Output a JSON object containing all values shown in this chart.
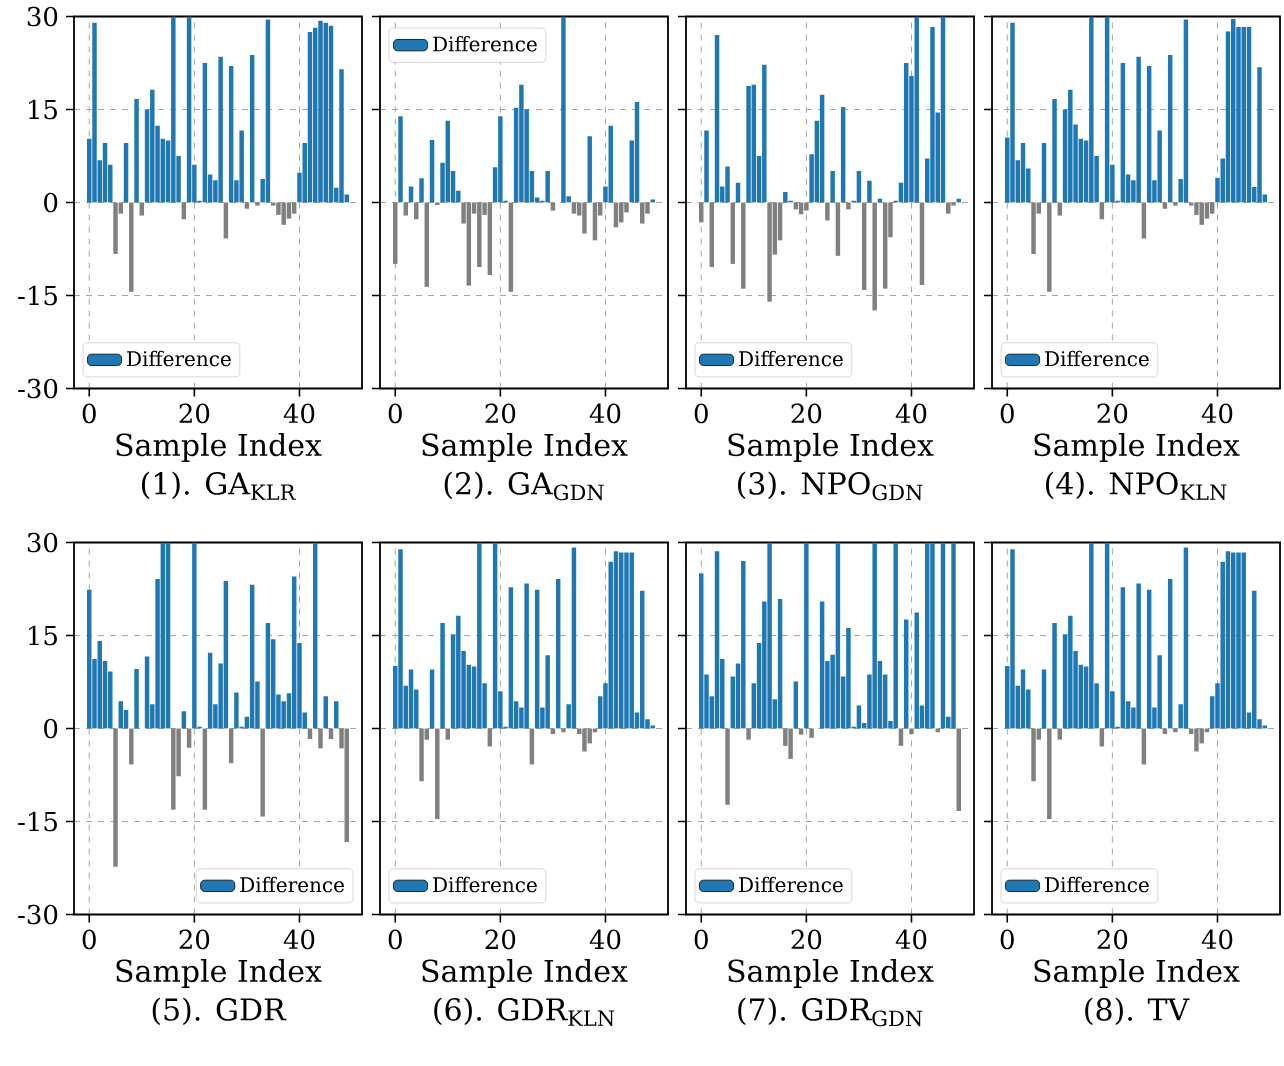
{
  "chart_data": [
    {
      "type": "bar",
      "title": "(1). GA$_{KLR}$",
      "xlabel": "Sample Index",
      "legend": "bottom left",
      "grid": true,
      "xlim": [
        -2.9,
        51.9
      ],
      "ylim": [
        -30,
        30
      ],
      "xticks": [
        0,
        20,
        40
      ],
      "yticks": [
        -30,
        -15,
        0,
        15,
        30
      ],
      "x": [
        0,
        1,
        2,
        3,
        4,
        5,
        6,
        7,
        8,
        9,
        10,
        11,
        12,
        13,
        14,
        15,
        16,
        17,
        18,
        19,
        20,
        21,
        22,
        23,
        24,
        25,
        26,
        27,
        28,
        29,
        30,
        31,
        32,
        33,
        34,
        35,
        36,
        37,
        38,
        39,
        40,
        41,
        42,
        43,
        44,
        45,
        46,
        47,
        48,
        49
      ],
      "series": [
        {
          "name": "Difference",
          "color": "#1f77b4",
          "values": [
            10.3,
            29,
            6.8,
            9.6,
            6.1,
            null,
            null,
            9.6,
            null,
            16.7,
            null,
            15,
            18.2,
            12.4,
            10.3,
            10,
            30,
            7.5,
            null,
            30,
            6.1,
            0.3,
            22.5,
            4.5,
            3.6,
            23.5,
            null,
            22,
            3.6,
            11.6,
            null,
            23.8,
            null,
            3.8,
            29.5,
            null,
            null,
            null,
            null,
            null,
            4.8,
            9.6,
            27.5,
            28.2,
            29.3,
            29,
            28.5,
            2.4,
            21.5,
            1.3
          ]
        },
        {
          "color": "#808080",
          "values": [
            null,
            null,
            null,
            null,
            null,
            -8.3,
            -1.8,
            null,
            -14.4,
            null,
            -2.1,
            null,
            null,
            null,
            null,
            null,
            null,
            null,
            -2.7,
            null,
            null,
            null,
            null,
            null,
            null,
            null,
            -5.8,
            null,
            null,
            null,
            -1,
            null,
            -0.5,
            null,
            null,
            -0.5,
            -2,
            -3.6,
            -2.6,
            -1.8,
            null,
            null,
            null,
            null,
            null,
            null,
            null,
            null,
            null,
            null
          ]
        }
      ]
    },
    {
      "type": "bar",
      "title": "(2). GA$_{GDN}$",
      "xlabel": "Sample Index",
      "legend": "top left",
      "grid": true,
      "tick_labels": "x",
      "xlim": [
        -2.9,
        51.9
      ],
      "ylim": [
        -30,
        30
      ],
      "xticks": [
        0,
        20,
        40
      ],
      "yticks": [
        -30,
        -15,
        0,
        15,
        30
      ],
      "x": [
        0,
        1,
        2,
        3,
        4,
        5,
        6,
        7,
        8,
        9,
        10,
        11,
        12,
        13,
        14,
        15,
        16,
        17,
        18,
        19,
        20,
        21,
        22,
        23,
        24,
        25,
        26,
        27,
        28,
        29,
        30,
        31,
        32,
        33,
        34,
        35,
        36,
        37,
        38,
        39,
        40,
        41,
        42,
        43,
        44,
        45,
        46,
        47,
        48,
        49
      ],
      "series": [
        {
          "name": "Difference",
          "color": "#1f77b4",
          "values": [
            null,
            13.9,
            null,
            2.6,
            null,
            3.9,
            null,
            10.1,
            null,
            6.4,
            13.2,
            5.1,
            1.9,
            null,
            null,
            null,
            null,
            null,
            null,
            5.7,
            13.9,
            0.3,
            null,
            15.3,
            19,
            15,
            5.1,
            0.8,
            0.3,
            5.1,
            null,
            null,
            30,
            1,
            null,
            null,
            null,
            10.7,
            null,
            null,
            2.6,
            12.4,
            null,
            null,
            null,
            10,
            16.2,
            null,
            null,
            0.5
          ]
        },
        {
          "color": "#808080",
          "values": [
            -9.9,
            null,
            -2.1,
            null,
            -2.7,
            null,
            -13.6,
            null,
            -0.4,
            null,
            null,
            null,
            null,
            -3.4,
            -13.4,
            -1.8,
            -10.4,
            -2,
            -11.7,
            null,
            null,
            null,
            -14.4,
            null,
            null,
            null,
            null,
            null,
            null,
            null,
            -1.3,
            null,
            null,
            null,
            -1.8,
            -2.1,
            -5,
            null,
            -6.1,
            -2.1,
            null,
            null,
            -4,
            -3.2,
            -1.6,
            null,
            null,
            -3.4,
            -1.8,
            null
          ]
        }
      ]
    },
    {
      "type": "bar",
      "title": "(3). NPO$_{GDN}$",
      "xlabel": "Sample Index",
      "legend": "bottom left",
      "grid": true,
      "tick_labels": "x",
      "xlim": [
        -2.9,
        51.9
      ],
      "ylim": [
        -30,
        30
      ],
      "xticks": [
        0,
        20,
        40
      ],
      "yticks": [
        -30,
        -15,
        0,
        15,
        30
      ],
      "x": [
        0,
        1,
        2,
        3,
        4,
        5,
        6,
        7,
        8,
        9,
        10,
        11,
        12,
        13,
        14,
        15,
        16,
        17,
        18,
        19,
        20,
        21,
        22,
        23,
        24,
        25,
        26,
        27,
        28,
        29,
        30,
        31,
        32,
        33,
        34,
        35,
        36,
        37,
        38,
        39,
        40,
        41,
        42,
        43,
        44,
        45,
        46,
        47,
        48,
        49
      ],
      "series": [
        {
          "name": "Difference",
          "color": "#1f77b4",
          "values": [
            null,
            11.6,
            null,
            27,
            2.6,
            5.8,
            null,
            3.2,
            null,
            18.8,
            19,
            7.5,
            22.2,
            null,
            null,
            null,
            1.7,
            0.3,
            null,
            null,
            null,
            7.8,
            13.2,
            17.4,
            null,
            5.1,
            null,
            15.4,
            null,
            0.3,
            5.1,
            null,
            3.5,
            null,
            0.6,
            null,
            null,
            0.3,
            3.2,
            22.5,
            20.4,
            30,
            null,
            7.1,
            28.3,
            14.5,
            30,
            null,
            null,
            0.6
          ]
        },
        {
          "color": "#808080",
          "values": [
            -3.2,
            null,
            -10.4,
            null,
            null,
            null,
            -9.9,
            null,
            -13.9,
            null,
            null,
            null,
            null,
            -16,
            -8.4,
            -6.1,
            null,
            null,
            -1.1,
            -1.9,
            -1.3,
            null,
            null,
            null,
            -2.9,
            null,
            -8.6,
            null,
            -1.1,
            null,
            null,
            -14.1,
            null,
            -17.4,
            null,
            -13.9,
            -5.6,
            null,
            null,
            null,
            null,
            null,
            -13.3,
            null,
            null,
            null,
            null,
            -1.8,
            -0.5,
            null
          ]
        }
      ]
    },
    {
      "type": "bar",
      "title": "(4). NPO$_{KLN}$",
      "xlabel": "Sample Index",
      "legend": "bottom left",
      "grid": true,
      "tick_labels": "x",
      "xlim": [
        -2.9,
        51.9
      ],
      "ylim": [
        -30,
        30
      ],
      "xticks": [
        0,
        20,
        40
      ],
      "yticks": [
        -30,
        -15,
        0,
        15,
        30
      ],
      "x": [
        0,
        1,
        2,
        3,
        4,
        5,
        6,
        7,
        8,
        9,
        10,
        11,
        12,
        13,
        14,
        15,
        16,
        17,
        18,
        19,
        20,
        21,
        22,
        23,
        24,
        25,
        26,
        27,
        28,
        29,
        30,
        31,
        32,
        33,
        34,
        35,
        36,
        37,
        38,
        39,
        40,
        41,
        42,
        43,
        44,
        45,
        46,
        47,
        48,
        49
      ],
      "series": [
        {
          "name": "Difference",
          "color": "#1f77b4",
          "values": [
            10.5,
            29,
            6.8,
            9.6,
            5.5,
            null,
            null,
            9.6,
            null,
            16.7,
            null,
            15,
            18.2,
            12.6,
            10.3,
            10,
            30,
            7.5,
            null,
            30,
            6.1,
            0.3,
            22.5,
            4.5,
            3.6,
            23.5,
            null,
            22,
            3.6,
            11.6,
            null,
            23.8,
            null,
            3.8,
            29.5,
            null,
            null,
            null,
            null,
            null,
            4,
            7.1,
            27.6,
            29.6,
            28.3,
            28.3,
            28.3,
            2.5,
            21.8,
            1.3
          ]
        },
        {
          "color": "#808080",
          "values": [
            null,
            null,
            null,
            null,
            null,
            -8.3,
            -1.8,
            null,
            -14.4,
            null,
            -2.1,
            null,
            null,
            null,
            null,
            null,
            null,
            null,
            -2.7,
            null,
            null,
            null,
            null,
            null,
            null,
            null,
            -5.8,
            null,
            null,
            null,
            -1,
            null,
            -0.5,
            null,
            null,
            -0.5,
            -2,
            -3.6,
            -2.6,
            -1.8,
            null,
            null,
            null,
            null,
            null,
            null,
            null,
            null,
            null,
            null
          ]
        }
      ]
    },
    {
      "type": "bar",
      "title": "(5). GDR",
      "xlabel": "Sample Index",
      "legend": "bottom right",
      "grid": true,
      "xlim": [
        -2.9,
        51.9
      ],
      "ylim": [
        -30,
        30
      ],
      "xticks": [
        0,
        20,
        40
      ],
      "yticks": [
        -30,
        -15,
        0,
        15,
        30
      ],
      "x": [
        0,
        1,
        2,
        3,
        4,
        5,
        6,
        7,
        8,
        9,
        10,
        11,
        12,
        13,
        14,
        15,
        16,
        17,
        18,
        19,
        20,
        21,
        22,
        23,
        24,
        25,
        26,
        27,
        28,
        29,
        30,
        31,
        32,
        33,
        34,
        35,
        36,
        37,
        38,
        39,
        40,
        41,
        42,
        43,
        44,
        45,
        46,
        47,
        48,
        49
      ],
      "series": [
        {
          "name": "Difference",
          "color": "#1f77b4",
          "values": [
            22.4,
            11.2,
            14.1,
            10.9,
            9.2,
            null,
            4.4,
            3,
            null,
            9.6,
            null,
            11.6,
            3.9,
            24.1,
            30,
            30,
            null,
            null,
            2.8,
            null,
            30,
            0.3,
            null,
            12.2,
            3.9,
            10.5,
            23.8,
            null,
            5.8,
            0.3,
            1.9,
            23.2,
            7.6,
            null,
            17,
            14.4,
            5.5,
            4.4,
            5.7,
            24.5,
            13.8,
            2.6,
            null,
            30,
            null,
            5.2,
            null,
            4.4,
            null,
            null
          ]
        },
        {
          "color": "#808080",
          "values": [
            null,
            null,
            null,
            null,
            null,
            -22.3,
            null,
            null,
            -5.8,
            null,
            null,
            null,
            null,
            null,
            null,
            null,
            -13.1,
            -7.7,
            null,
            -3.1,
            null,
            null,
            -13.1,
            null,
            null,
            null,
            null,
            -5.6,
            null,
            null,
            null,
            null,
            null,
            -14.2,
            null,
            null,
            null,
            null,
            null,
            null,
            null,
            null,
            -1.7,
            null,
            -3.2,
            null,
            -1.7,
            null,
            -3.2,
            -18.3
          ]
        }
      ]
    },
    {
      "type": "bar",
      "title": "(6). GDR$_{KLN}$",
      "xlabel": "Sample Index",
      "legend": "bottom left",
      "grid": true,
      "tick_labels": "x",
      "xlim": [
        -2.9,
        51.9
      ],
      "ylim": [
        -30,
        30
      ],
      "xticks": [
        0,
        20,
        40
      ],
      "yticks": [
        -30,
        -15,
        0,
        15,
        30
      ],
      "x": [
        0,
        1,
        2,
        3,
        4,
        5,
        6,
        7,
        8,
        9,
        10,
        11,
        12,
        13,
        14,
        15,
        16,
        17,
        18,
        19,
        20,
        21,
        22,
        23,
        24,
        25,
        26,
        27,
        28,
        29,
        30,
        31,
        32,
        33,
        34,
        35,
        36,
        37,
        38,
        39,
        40,
        41,
        42,
        43,
        44,
        45,
        46,
        47,
        48,
        49
      ],
      "series": [
        {
          "name": "Difference",
          "color": "#1f77b4",
          "values": [
            10.1,
            28.9,
            6.9,
            9.5,
            6.3,
            null,
            null,
            9.5,
            null,
            17,
            null,
            15.2,
            18.2,
            12.5,
            10.3,
            10,
            30,
            7.3,
            null,
            30,
            6,
            0.3,
            22.8,
            4.4,
            3.4,
            23.4,
            null,
            22.4,
            3.4,
            11.8,
            null,
            24.1,
            null,
            3.9,
            29.2,
            null,
            null,
            null,
            null,
            5.2,
            7.3,
            26.9,
            28.6,
            28.4,
            28.4,
            28.4,
            2.6,
            22.2,
            1.5,
            0.5
          ]
        },
        {
          "color": "#808080",
          "values": [
            null,
            null,
            null,
            null,
            null,
            -8.5,
            -1.8,
            null,
            -14.6,
            null,
            -1.8,
            null,
            null,
            null,
            null,
            null,
            null,
            null,
            -2.9,
            null,
            null,
            null,
            null,
            null,
            null,
            null,
            -5.8,
            null,
            null,
            null,
            -0.9,
            null,
            -0.6,
            null,
            null,
            -0.9,
            -3.7,
            -2.4,
            -0.6,
            null,
            null,
            null,
            null,
            null,
            null,
            null,
            null,
            null,
            null,
            null
          ]
        }
      ]
    },
    {
      "type": "bar",
      "title": "(7). GDR$_{GDN}$",
      "xlabel": "Sample Index",
      "legend": "bottom left",
      "grid": true,
      "tick_labels": "x",
      "xlim": [
        -2.9,
        51.9
      ],
      "ylim": [
        -30,
        30
      ],
      "xticks": [
        0,
        20,
        40
      ],
      "yticks": [
        -30,
        -15,
        0,
        15,
        30
      ],
      "x": [
        0,
        1,
        2,
        3,
        4,
        5,
        6,
        7,
        8,
        9,
        10,
        11,
        12,
        13,
        14,
        15,
        16,
        17,
        18,
        19,
        20,
        21,
        22,
        23,
        24,
        25,
        26,
        27,
        28,
        29,
        30,
        31,
        32,
        33,
        34,
        35,
        36,
        37,
        38,
        39,
        40,
        41,
        42,
        43,
        44,
        45,
        46,
        47,
        48,
        49
      ],
      "series": [
        {
          "name": "Difference",
          "color": "#1f77b4",
          "values": [
            25,
            8.7,
            5.2,
            28.6,
            11.2,
            null,
            8.4,
            10.5,
            27,
            null,
            7.3,
            13.8,
            20.5,
            30,
            4.7,
            20.9,
            null,
            null,
            7.6,
            null,
            30,
            null,
            null,
            20.5,
            10.9,
            11.9,
            30,
            8.4,
            16.2,
            0.3,
            3.7,
            0.9,
            8.7,
            30,
            10.9,
            8.7,
            1.2,
            30,
            null,
            17.6,
            null,
            18.7,
            3.7,
            30,
            30,
            null,
            30,
            1.9,
            30,
            null
          ]
        },
        {
          "color": "#808080",
          "values": [
            null,
            null,
            null,
            null,
            null,
            -12.3,
            null,
            null,
            null,
            -1.8,
            null,
            null,
            null,
            null,
            null,
            null,
            -2.8,
            -4.9,
            null,
            -1,
            null,
            -1.5,
            null,
            null,
            null,
            null,
            null,
            null,
            null,
            null,
            null,
            null,
            null,
            null,
            null,
            null,
            null,
            null,
            -2.8,
            null,
            -0.9,
            null,
            null,
            null,
            null,
            -0.6,
            null,
            null,
            null,
            -13.3
          ]
        }
      ]
    },
    {
      "type": "bar",
      "title": "(8). TV",
      "xlabel": "Sample Index",
      "legend": "bottom left",
      "grid": true,
      "tick_labels": "x",
      "xlim": [
        -2.9,
        51.9
      ],
      "ylim": [
        -30,
        30
      ],
      "xticks": [
        0,
        20,
        40
      ],
      "yticks": [
        -30,
        -15,
        0,
        15,
        30
      ],
      "x": [
        0,
        1,
        2,
        3,
        4,
        5,
        6,
        7,
        8,
        9,
        10,
        11,
        12,
        13,
        14,
        15,
        16,
        17,
        18,
        19,
        20,
        21,
        22,
        23,
        24,
        25,
        26,
        27,
        28,
        29,
        30,
        31,
        32,
        33,
        34,
        35,
        36,
        37,
        38,
        39,
        40,
        41,
        42,
        43,
        44,
        45,
        46,
        47,
        48,
        49
      ],
      "series": [
        {
          "name": "Difference",
          "color": "#1f77b4",
          "values": [
            10.1,
            28.9,
            6.9,
            9.5,
            6.3,
            null,
            null,
            9.5,
            null,
            17,
            null,
            15.2,
            18.2,
            12.5,
            10.3,
            10,
            30,
            7.3,
            null,
            30,
            6,
            0.3,
            22.8,
            4.4,
            3.4,
            23.4,
            null,
            22.4,
            3.4,
            11.8,
            null,
            24.1,
            null,
            3.9,
            29.2,
            null,
            null,
            null,
            null,
            5.2,
            7.3,
            26.9,
            28.6,
            28.4,
            28.4,
            28.4,
            2.6,
            22.2,
            1.5,
            0.5
          ]
        },
        {
          "color": "#808080",
          "values": [
            null,
            null,
            null,
            null,
            null,
            -8.5,
            -1.8,
            null,
            -14.6,
            null,
            -1.8,
            null,
            null,
            null,
            null,
            null,
            null,
            null,
            -2.9,
            null,
            null,
            null,
            null,
            null,
            null,
            null,
            -5.8,
            null,
            null,
            null,
            -0.9,
            null,
            -0.6,
            null,
            null,
            -0.9,
            -3.7,
            -2.4,
            -0.6,
            null,
            null,
            null,
            null,
            null,
            null,
            null,
            null,
            null,
            null,
            null
          ]
        }
      ]
    }
  ]
}
